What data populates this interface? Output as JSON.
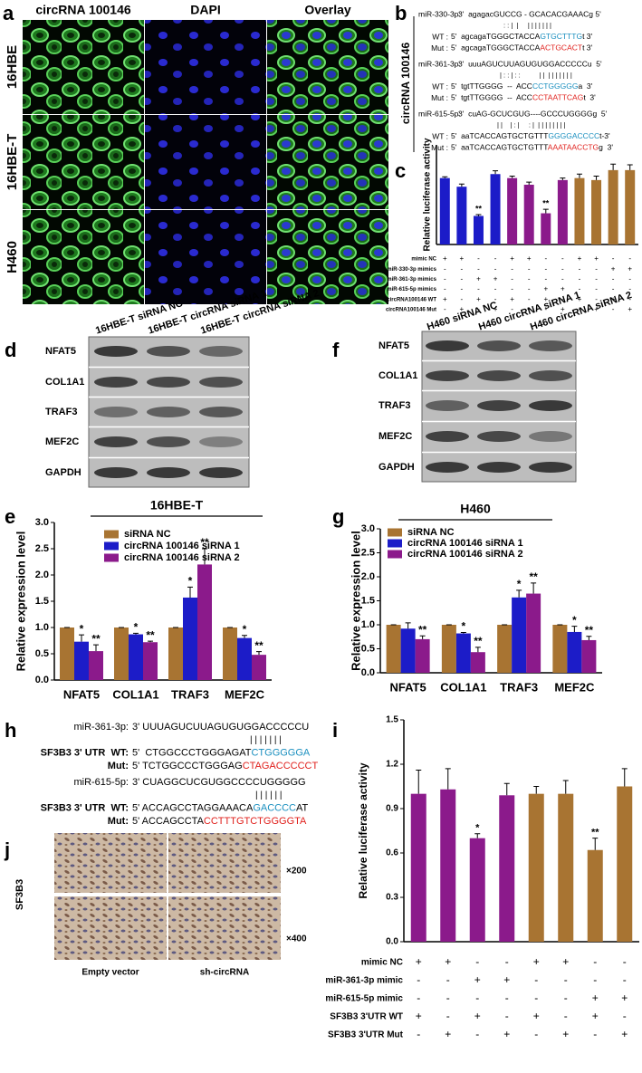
{
  "panel_labels": [
    "a",
    "b",
    "c",
    "d",
    "e",
    "f",
    "g",
    "h",
    "i",
    "j"
  ],
  "microscopy": {
    "columns": [
      "circRNA 100146",
      "DAPI",
      "Overlay"
    ],
    "rows": [
      "16HBE",
      "16HBE-T",
      "H460"
    ]
  },
  "binding_sites": {
    "gene": "circRNA 100146",
    "sites": [
      {
        "mirna": "miR-330-3p:",
        "mirna_seq": "3'  agagacGUCCG - GCACACGAAACg 5'",
        "pairing": ": : |  |     | | | | | | |",
        "targets": [
          {
            "label": "WT :",
            "segments": [
              {
                "text": "5'  agcagaTGGGCTACCA"
              },
              {
                "text": "GTGCTTTG",
                "color": "#1a8fbf"
              },
              {
                "text": "t 3'"
              }
            ]
          },
          {
            "label": "Mut :",
            "segments": [
              {
                "text": "5'  agcagaTGGGCTACCA"
              },
              {
                "text": "ACTGCACT",
                "color": "#e0201c"
              },
              {
                "text": "t 3'"
              }
            ]
          }
        ]
      },
      {
        "mirna": "miR-361-3p:",
        "mirna_seq": "3'  uuuAGUCUUAGUGUGGACCCCCu  5'",
        "pairing": "| : : | : :          | |  | | | | | | |",
        "targets": [
          {
            "label": "WT :",
            "segments": [
              {
                "text": "5'  tgtTTGGGG  --  ACC"
              },
              {
                "text": "CCTGGGGG",
                "color": "#1a8fbf"
              },
              {
                "text": "a  3'"
              }
            ]
          },
          {
            "label": "Mut :",
            "segments": [
              {
                "text": "5'  tgtTTGGGG  --  ACC"
              },
              {
                "text": "CCTAATTCAG",
                "color": "#e0201c"
              },
              {
                "text": "t  3'"
              }
            ]
          }
        ]
      },
      {
        "mirna": "miR-615-5p:",
        "mirna_seq": "3'  cuAG-GCUCGUG----GCCCUGGGGg  5'",
        "pairing": "| |    | : |     : |  | | | | | | | |",
        "targets": [
          {
            "label": "WT :",
            "segments": [
              {
                "text": "5'  aaTCACCAGTGCTGTTT"
              },
              {
                "text": "GGGGACCCC",
                "color": "#1a8fbf"
              },
              {
                "text": "t-3'"
              }
            ]
          },
          {
            "label": "Mut :",
            "segments": [
              {
                "text": "5'  aaTCACCAGTGCTGTTT"
              },
              {
                "text": "AAATAACCTG",
                "color": "#e0201c"
              },
              {
                "text": "g  3'"
              }
            ]
          }
        ]
      }
    ]
  },
  "blot_d": {
    "lanes": [
      "16HBE-T siRNA NC",
      "16HBE-T circRNA siRNA 1",
      "16HBE-T circRNA siRNA 2"
    ],
    "proteins": [
      "NFAT5",
      "COL1A1",
      "TRAF3",
      "MEF2C",
      "GAPDH"
    ]
  },
  "blot_f": {
    "lanes": [
      "H460 siRNA NC",
      "H460 circRNA siRNA 1",
      "H460 circRNA siRNA 2"
    ],
    "proteins": [
      "NFAT5",
      "COL1A1",
      "TRAF3",
      "MEF2C",
      "GAPDH"
    ]
  },
  "sf3b3_sites": [
    {
      "mirna": "miR-361-3p:",
      "mirna_seq": "3' UUUAGUCUUAGUGUGGACCCCCU",
      "pairing": "| | | | | | |",
      "targets": [
        {
          "label": "SF3B3 3' UTR  WT:",
          "segments": [
            {
              "text": "5'  CTGGCCCTGGGAGAT"
            },
            {
              "text": "CTGGGGGA",
              "color": "#1a8fbf"
            }
          ]
        },
        {
          "label": "Mut:",
          "segments": [
            {
              "text": "5' TCTGGCCCTGGGAG"
            },
            {
              "text": "CTAGACCCCCT",
              "color": "#e0201c"
            }
          ]
        }
      ]
    },
    {
      "mirna": "miR-615-5p:",
      "mirna_seq": "3' CUAGGCUCGUGGCCCCUGGGGG",
      "pairing": "| | | | | |",
      "targets": [
        {
          "label": "SF3B3 3' UTR  WT:",
          "segments": [
            {
              "text": "5' ACCAGCCTAGGAAACA"
            },
            {
              "text": "GACCCC",
              "color": "#1a8fbf"
            },
            {
              "text": "AT"
            }
          ]
        },
        {
          "label": "Mut:",
          "segments": [
            {
              "text": "5' ACCAGCCTA"
            },
            {
              "text": "CCTTTGTCTGGGGTA",
              "color": "#e0201c"
            }
          ]
        }
      ]
    }
  ],
  "ihc": {
    "stain": "SF3B3",
    "magnifications": [
      "×200",
      "×400"
    ],
    "columns": [
      "Empty vector",
      "sh-circRNA"
    ]
  },
  "chart_data": [
    {
      "type": "bar",
      "ylabel": "Relative luciferase activity",
      "ylim": [
        0,
        1.5
      ],
      "values": [
        1.0,
        0.87,
        0.43,
        1.06,
        1.0,
        0.9,
        0.47,
        0.97,
        1.0,
        0.97,
        1.12,
        1.12
      ],
      "errors": [
        0.02,
        0.04,
        0.02,
        0.05,
        0.03,
        0.04,
        0.06,
        0.03,
        0.06,
        0.06,
        0.09,
        0.08
      ],
      "colors": [
        "#1c1cc8",
        "#1c1cc8",
        "#1c1cc8",
        "#1c1cc8",
        "#8b1a8b",
        "#8b1a8b",
        "#8b1a8b",
        "#8b1a8b",
        "#a87432",
        "#a87432",
        "#a87432",
        "#a87432"
      ],
      "significance": [
        null,
        null,
        "**",
        null,
        null,
        null,
        "**",
        null,
        null,
        null,
        null,
        null
      ],
      "conditions": [
        {
          "name": "mimic NC",
          "signs": [
            "+",
            "+",
            "-",
            "-",
            "+",
            "+",
            "-",
            "-",
            "+",
            "+",
            "-",
            "-"
          ]
        },
        {
          "name": "miR-330-3p mimics",
          "signs": [
            "-",
            "-",
            "-",
            "-",
            "-",
            "-",
            "-",
            "-",
            "-",
            "-",
            "+",
            "+"
          ]
        },
        {
          "name": "miR-361-3p mimics",
          "signs": [
            "-",
            "-",
            "+",
            "+",
            "-",
            "-",
            "-",
            "-",
            "-",
            "-",
            "-",
            "-"
          ]
        },
        {
          "name": "miR-615-5p mimics",
          "signs": [
            "-",
            "-",
            "-",
            "-",
            "-",
            "-",
            "+",
            "+",
            "-",
            "-",
            "-",
            "-"
          ]
        },
        {
          "name": "circRNA100146 WT",
          "signs": [
            "+",
            "-",
            "+",
            "-",
            "+",
            "-",
            "+",
            "-",
            "+",
            "-",
            "+",
            "-"
          ]
        },
        {
          "name": "circRNA100146 Mut",
          "signs": [
            "-",
            "+",
            "-",
            "+",
            "-",
            "+",
            "-",
            "+",
            "-",
            "+",
            "-",
            "+"
          ]
        }
      ]
    },
    {
      "type": "bar",
      "title": "16HBE-T",
      "ylabel": "Relative expression level",
      "ylim": [
        0,
        3
      ],
      "yticks": [
        {
          "value": 0,
          "label": "0.0"
        },
        0.5,
        {
          "value": 1,
          "label": "1.0"
        },
        1.5,
        {
          "value": 2,
          "label": "2.0"
        },
        2.5,
        {
          "value": 3,
          "label": "3.0"
        }
      ],
      "categories": [
        "NFAT5",
        "COL1A1",
        "TRAF3",
        "MEF2C"
      ],
      "series": [
        {
          "name": "siRNA NC",
          "color": "#a87432",
          "values": [
            1,
            1,
            1,
            1
          ],
          "errors": [
            0,
            0,
            0,
            0
          ],
          "significance": [
            null,
            null,
            null,
            null
          ]
        },
        {
          "name": "circRNA 100146 siRNA 1",
          "color": "#1c1cc8",
          "values": [
            0.73,
            0.87,
            1.57,
            0.8
          ],
          "errors": [
            0.13,
            0.02,
            0.2,
            0.05
          ],
          "significance": [
            "*",
            "*",
            "*",
            "*"
          ]
        },
        {
          "name": "circRNA 100146 siRNA 2",
          "color": "#8b1a8b",
          "values": [
            0.55,
            0.72,
            2.2,
            0.48
          ],
          "errors": [
            0.12,
            0.02,
            0.3,
            0.06
          ],
          "significance": [
            "**",
            "**",
            "**",
            "**"
          ]
        }
      ]
    },
    {
      "type": "bar",
      "title": "H460",
      "ylabel": "Relative expression level",
      "ylim": [
        0,
        3
      ],
      "yticks": [
        {
          "value": 0,
          "label": "0.0"
        },
        0.5,
        {
          "value": 1,
          "label": "1.0"
        },
        1.5,
        {
          "value": 2,
          "label": "2.0"
        },
        2.5,
        {
          "value": 3,
          "label": "3.0"
        }
      ],
      "categories": [
        "NFAT5",
        "COL1A1",
        "TRAF3",
        "MEF2C"
      ],
      "series": [
        {
          "name": "siRNA NC",
          "color": "#a87432",
          "values": [
            1,
            1,
            1,
            1
          ],
          "errors": [
            0,
            0,
            0,
            0
          ],
          "significance": [
            null,
            null,
            null,
            null
          ]
        },
        {
          "name": "circRNA 100146 siRNA 1",
          "color": "#1c1cc8",
          "values": [
            0.92,
            0.82,
            1.57,
            0.85
          ],
          "errors": [
            0.12,
            0.02,
            0.15,
            0.12
          ],
          "significance": [
            null,
            "*",
            "*",
            "*"
          ]
        },
        {
          "name": "circRNA 100146 siRNA 2",
          "color": "#8b1a8b",
          "values": [
            0.7,
            0.43,
            1.65,
            0.68
          ],
          "errors": [
            0.07,
            0.1,
            0.22,
            0.08
          ],
          "significance": [
            "**",
            "**",
            "**",
            "**"
          ]
        }
      ]
    },
    {
      "type": "bar",
      "ylabel": "Relative luciferase activity",
      "ylim": [
        0,
        1.5
      ],
      "yticks": [
        {
          "value": 0,
          "label": "0.0"
        },
        0.3,
        0.6,
        0.9,
        1.2,
        1.5
      ],
      "values": [
        1.0,
        1.03,
        0.7,
        0.99,
        1.0,
        1.0,
        0.62,
        1.05
      ],
      "errors": [
        0.16,
        0.14,
        0.03,
        0.08,
        0.05,
        0.09,
        0.08,
        0.12
      ],
      "colors": [
        "#8b1a8b",
        "#8b1a8b",
        "#8b1a8b",
        "#8b1a8b",
        "#a87432",
        "#a87432",
        "#a87432",
        "#a87432"
      ],
      "significance": [
        null,
        null,
        "*",
        null,
        null,
        null,
        "**",
        null
      ],
      "conditions": [
        {
          "name": "mimic NC",
          "signs": [
            "+",
            "+",
            "-",
            "-",
            "+",
            "+",
            "-",
            "-"
          ]
        },
        {
          "name": "miR-361-3p mimic",
          "signs": [
            "-",
            "-",
            "+",
            "+",
            "-",
            "-",
            "-",
            "-"
          ]
        },
        {
          "name": "miR-615-5p mimic",
          "signs": [
            "-",
            "-",
            "-",
            "-",
            "-",
            "-",
            "+",
            "+"
          ]
        },
        {
          "name": "SF3B3 3'UTR WT",
          "signs": [
            "+",
            "-",
            "+",
            "-",
            "+",
            "-",
            "+",
            "-"
          ]
        },
        {
          "name": "SF3B3 3'UTR Mut",
          "signs": [
            "-",
            "+",
            "-",
            "+",
            "-",
            "+",
            "-",
            "+"
          ]
        }
      ]
    }
  ]
}
